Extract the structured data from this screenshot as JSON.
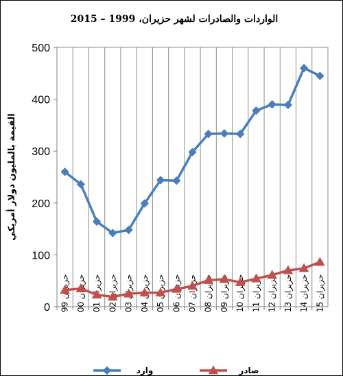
{
  "chart_data": {
    "type": "line",
    "title": "الواردات والصادرات لشهر حزيران، 1999 – 2015",
    "ylabel": "القيمة بالمليون دولار أمريكي",
    "xlabel": "",
    "ylim": [
      0,
      500
    ],
    "yticks": [
      0,
      100,
      200,
      300,
      400,
      500
    ],
    "grid": "vertical",
    "legend_position": "bottom",
    "categories": [
      "حزيران 99",
      "حزيران 00",
      "حزيران 01",
      "حزيران 02",
      "حزيران 03",
      "حزيران 04",
      "حزيران 05",
      "حزيران 06",
      "حزيران 07",
      "حزيران 08",
      "حزيران 09",
      "حزيران 10",
      "حزيران 11",
      "حزيران 12",
      "حزيران 13",
      "حزيران 14",
      "حزيران 15"
    ],
    "series": [
      {
        "name": "وارد",
        "color": "#4a7ebb",
        "marker": "diamond",
        "values": [
          260,
          236,
          164,
          142,
          148,
          199,
          244,
          243,
          298,
          333,
          334,
          333,
          378,
          390,
          389,
          460,
          445
        ]
      },
      {
        "name": "صادر",
        "color": "#c0504d",
        "marker": "triangle",
        "values": [
          32,
          35,
          23,
          19,
          25,
          27,
          27,
          34,
          40,
          51,
          53,
          47,
          54,
          61,
          70,
          74,
          86
        ]
      }
    ]
  }
}
